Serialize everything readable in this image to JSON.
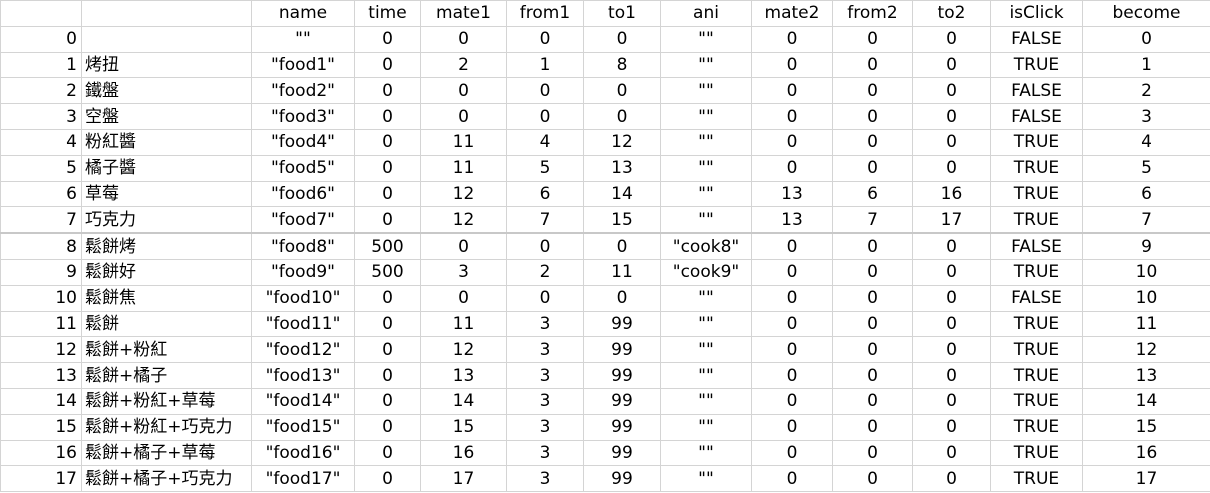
{
  "sheet": {
    "headers": [
      "",
      "",
      "name",
      "time",
      "mate1",
      "from1",
      "to1",
      "ani",
      "mate2",
      "from2",
      "to2",
      "isClick",
      "become"
    ],
    "rows": [
      [
        "0",
        "",
        "\"\"",
        "0",
        "0",
        "0",
        "0",
        "\"\"",
        "0",
        "0",
        "0",
        "FALSE",
        "0"
      ],
      [
        "1",
        "烤扭",
        "\"food1\"",
        "0",
        "2",
        "1",
        "8",
        "\"\"",
        "0",
        "0",
        "0",
        "TRUE",
        "1"
      ],
      [
        "2",
        "鐵盤",
        "\"food2\"",
        "0",
        "0",
        "0",
        "0",
        "\"\"",
        "0",
        "0",
        "0",
        "FALSE",
        "2"
      ],
      [
        "3",
        "空盤",
        "\"food3\"",
        "0",
        "0",
        "0",
        "0",
        "\"\"",
        "0",
        "0",
        "0",
        "FALSE",
        "3"
      ],
      [
        "4",
        "粉紅醬",
        "\"food4\"",
        "0",
        "11",
        "4",
        "12",
        "\"\"",
        "0",
        "0",
        "0",
        "TRUE",
        "4"
      ],
      [
        "5",
        "橘子醬",
        "\"food5\"",
        "0",
        "11",
        "5",
        "13",
        "\"\"",
        "0",
        "0",
        "0",
        "TRUE",
        "5"
      ],
      [
        "6",
        "草莓",
        "\"food6\"",
        "0",
        "12",
        "6",
        "14",
        "\"\"",
        "13",
        "6",
        "16",
        "TRUE",
        "6"
      ],
      [
        "7",
        "巧克力",
        "\"food7\"",
        "0",
        "12",
        "7",
        "15",
        "\"\"",
        "13",
        "7",
        "17",
        "TRUE",
        "7"
      ],
      [
        "8",
        "鬆餅烤",
        "\"food8\"",
        "500",
        "0",
        "0",
        "0",
        "\"cook8\"",
        "0",
        "0",
        "0",
        "FALSE",
        "9"
      ],
      [
        "9",
        "鬆餅好",
        "\"food9\"",
        "500",
        "3",
        "2",
        "11",
        "\"cook9\"",
        "0",
        "0",
        "0",
        "TRUE",
        "10"
      ],
      [
        "10",
        "鬆餅焦",
        "\"food10\"",
        "0",
        "0",
        "0",
        "0",
        "\"\"",
        "0",
        "0",
        "0",
        "FALSE",
        "10"
      ],
      [
        "11",
        "鬆餅",
        "\"food11\"",
        "0",
        "11",
        "3",
        "99",
        "\"\"",
        "0",
        "0",
        "0",
        "TRUE",
        "11"
      ],
      [
        "12",
        "鬆餅+粉紅",
        "\"food12\"",
        "0",
        "12",
        "3",
        "99",
        "\"\"",
        "0",
        "0",
        "0",
        "TRUE",
        "12"
      ],
      [
        "13",
        "鬆餅+橘子",
        "\"food13\"",
        "0",
        "13",
        "3",
        "99",
        "\"\"",
        "0",
        "0",
        "0",
        "TRUE",
        "13"
      ],
      [
        "14",
        "鬆餅+粉紅+草莓",
        "\"food14\"",
        "0",
        "14",
        "3",
        "99",
        "\"\"",
        "0",
        "0",
        "0",
        "TRUE",
        "14"
      ],
      [
        "15",
        "鬆餅+粉紅+巧克力",
        "\"food15\"",
        "0",
        "15",
        "3",
        "99",
        "\"\"",
        "0",
        "0",
        "0",
        "TRUE",
        "15"
      ],
      [
        "16",
        "鬆餅+橘子+草莓",
        "\"food16\"",
        "0",
        "16",
        "3",
        "99",
        "\"\"",
        "0",
        "0",
        "0",
        "TRUE",
        "16"
      ],
      [
        "17",
        "鬆餅+橘子+巧克力",
        "\"food17\"",
        "0",
        "17",
        "3",
        "99",
        "\"\"",
        "0",
        "0",
        "0",
        "TRUE",
        "17"
      ]
    ]
  },
  "colors": {
    "gridline": "#d4d4d4",
    "text": "#000000",
    "background": "#ffffff"
  }
}
